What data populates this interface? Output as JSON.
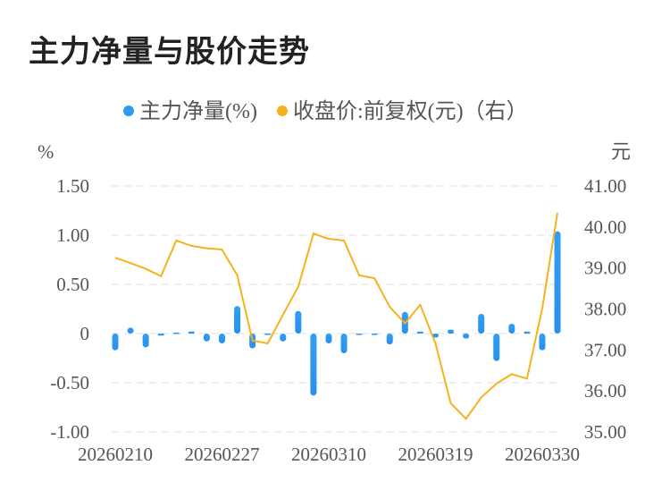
{
  "title": "主力净量与股价走势",
  "chart_data": {
    "type": "bar+line",
    "legend": {
      "position": "top"
    },
    "grid": true,
    "y_left": {
      "label": "%",
      "ylim": [
        -1.0,
        1.5
      ],
      "ticks": [
        "1.50",
        "1.00",
        "0.50",
        "0",
        "-0.50",
        "-1.00"
      ],
      "tick_values": [
        1.5,
        1.0,
        0.5,
        0,
        -0.5,
        -1.0
      ]
    },
    "y_right": {
      "label": "元",
      "ylim": [
        35.0,
        41.0
      ],
      "ticks": [
        "41.00",
        "40.00",
        "39.00",
        "38.00",
        "37.00",
        "36.00",
        "35.00"
      ],
      "tick_values": [
        41,
        40,
        39,
        38,
        37,
        36,
        35
      ]
    },
    "x_tick_labels": [
      {
        "index": 0,
        "label": "20260210"
      },
      {
        "index": 7,
        "label": "20260227"
      },
      {
        "index": 14,
        "label": "20260310"
      },
      {
        "index": 21,
        "label": "20260319"
      },
      {
        "index": 28,
        "label": "20260330"
      }
    ],
    "series": [
      {
        "name": "主力净量(%)",
        "type": "bar",
        "axis": "left",
        "color": "#2b9bf0",
        "values": [
          -0.17,
          0.06,
          -0.14,
          -0.02,
          0.01,
          0.02,
          -0.08,
          -0.1,
          0.28,
          -0.15,
          0.0,
          -0.08,
          0.23,
          -0.63,
          -0.1,
          -0.2,
          0.0,
          0.0,
          -0.11,
          0.22,
          0.02,
          -0.04,
          0.04,
          -0.05,
          0.2,
          -0.28,
          0.1,
          0.02,
          -0.17,
          1.04
        ]
      },
      {
        "name": "收盘价:前复权(元)（右）",
        "type": "line",
        "axis": "right",
        "color": "#f5b21c",
        "values": [
          39.25,
          39.12,
          38.98,
          38.8,
          39.67,
          39.54,
          39.48,
          39.45,
          38.82,
          37.23,
          37.16,
          37.86,
          38.54,
          39.84,
          39.71,
          39.67,
          38.82,
          38.75,
          38.05,
          37.65,
          38.1,
          37.16,
          35.7,
          35.32,
          35.84,
          36.18,
          36.41,
          36.3,
          38.01,
          40.35
        ]
      }
    ]
  }
}
